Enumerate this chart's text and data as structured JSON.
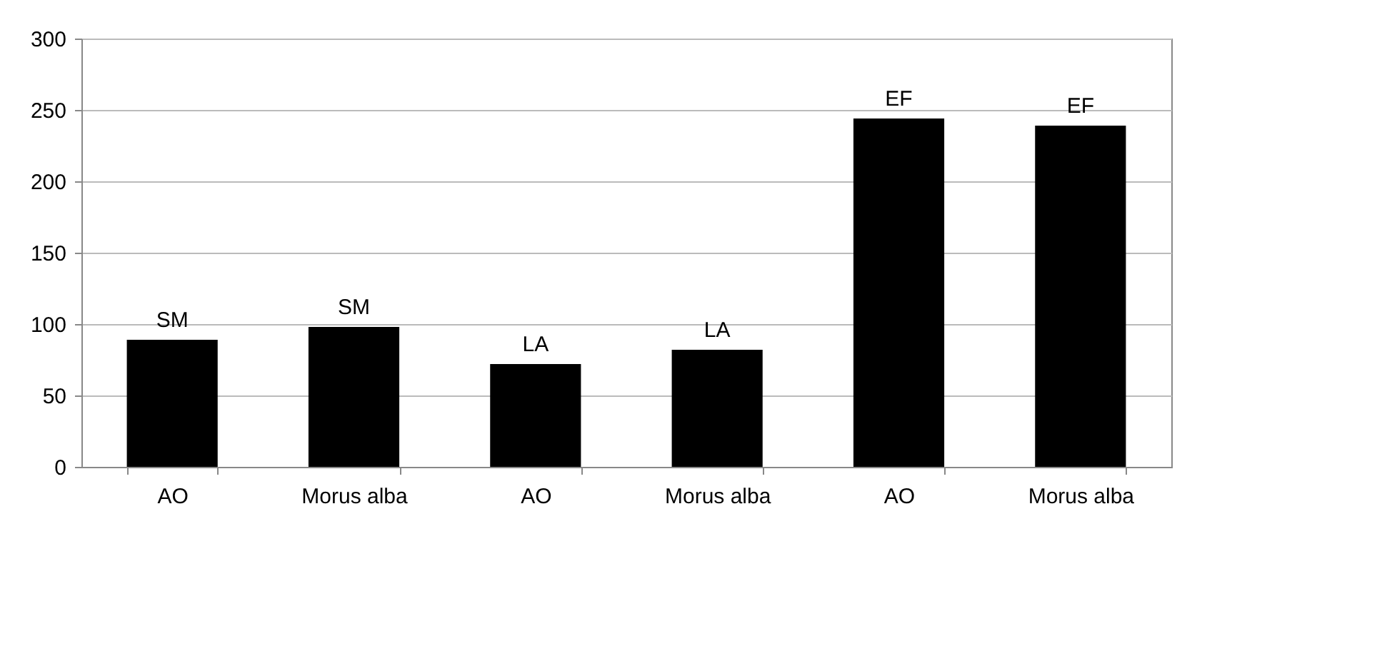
{
  "chart_data": {
    "type": "bar",
    "categories": [
      "AO",
      "Morus alba",
      "AO",
      "Morus alba",
      "AO",
      "Morus alba"
    ],
    "values": [
      89,
      98,
      72,
      82,
      244,
      239
    ],
    "value_labels": [
      "SM",
      "SM",
      "LA",
      "LA",
      "EF",
      "EF"
    ],
    "color": "#000000",
    "ylim": [
      0,
      300
    ],
    "yticks": [
      0,
      50,
      100,
      150,
      200,
      250,
      300
    ],
    "grid": "y"
  }
}
